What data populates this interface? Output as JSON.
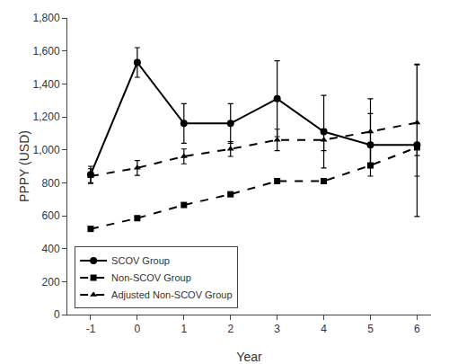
{
  "chart_data": {
    "type": "line",
    "xlabel": "Year",
    "ylabel": "PPPY (USD)",
    "x": [
      -1,
      0,
      1,
      2,
      3,
      4,
      5,
      6
    ],
    "xlim": [
      -1.5,
      6.3
    ],
    "xticks": [
      -1,
      0,
      1,
      2,
      3,
      4,
      5,
      6
    ],
    "ylim": [
      0,
      1800
    ],
    "yticks": [
      0,
      200,
      400,
      600,
      800,
      {
        "value": 1000,
        "label": "1,000"
      },
      {
        "value": 1200,
        "label": "1,200"
      },
      {
        "value": 1400,
        "label": "1,400"
      },
      {
        "value": 1600,
        "label": "1,600"
      },
      {
        "value": 1800,
        "label": "1,800"
      }
    ],
    "color": "#000000",
    "grid": false,
    "legend": "lower left",
    "series": [
      {
        "name": "SCOV Group",
        "marker": "circle",
        "line_style": "solid",
        "values": [
          850,
          1530,
          1160,
          1160,
          1310,
          1110,
          1030,
          1030
        ],
        "yerr_lo": [
          50,
          90,
          120,
          120,
          230,
          220,
          190,
          190
        ],
        "yerr_hi": [
          50,
          90,
          120,
          120,
          230,
          220,
          190,
          490
        ]
      },
      {
        "name": "Non-SCOV Group",
        "marker": "square",
        "line_style": "dash",
        "values": [
          520,
          585,
          665,
          730,
          810,
          810,
          905,
          1015
        ],
        "yerr_lo": [
          12,
          12,
          12,
          12,
          12,
          12,
          12,
          420
        ],
        "yerr_hi": [
          12,
          12,
          12,
          12,
          12,
          12,
          120,
          12
        ]
      },
      {
        "name": "Adjusted Non-SCOV Group",
        "marker": "triangle-up",
        "line_style": "dash",
        "values": [
          840,
          890,
          960,
          1005,
          1060,
          1060,
          1110,
          1165
        ],
        "yerr_lo": [
          45,
          45,
          45,
          45,
          65,
          65,
          200,
          200
        ],
        "yerr_hi": [
          45,
          45,
          45,
          45,
          65,
          65,
          200,
          350
        ]
      }
    ]
  }
}
